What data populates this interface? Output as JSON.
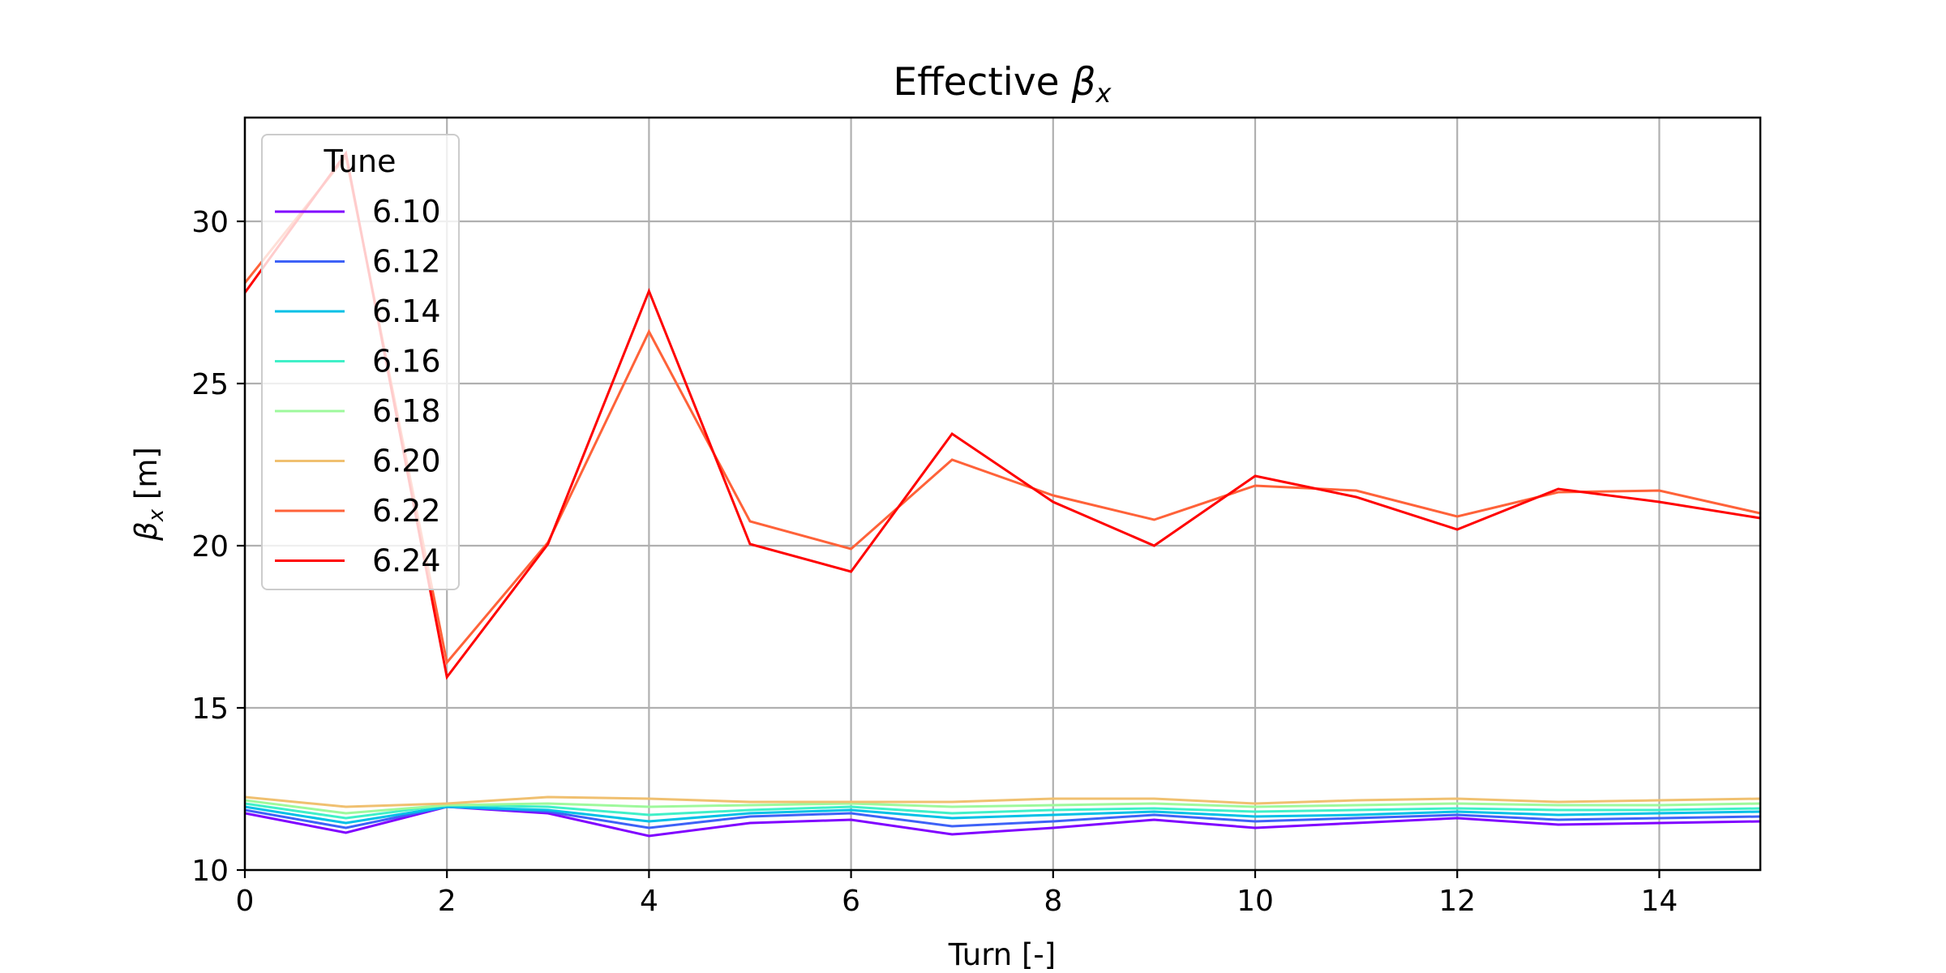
{
  "chart_data": {
    "type": "line",
    "title": "Effective",
    "title_symbol": "β",
    "title_subscript": "x",
    "xlabel": "Turn [-]",
    "ylabel_symbol": "β",
    "ylabel_subscript": "x",
    "ylabel_unit": "[m]",
    "xlim": [
      0,
      15
    ],
    "ylim": [
      10,
      33.2
    ],
    "xticks": [
      0,
      2,
      4,
      6,
      8,
      10,
      12,
      14
    ],
    "yticks": [
      10,
      15,
      20,
      25,
      30
    ],
    "grid": true,
    "legend": {
      "title": "Tune",
      "placement": "top-left"
    },
    "x": [
      0,
      1,
      2,
      3,
      4,
      5,
      6,
      7,
      8,
      9,
      10,
      11,
      12,
      13,
      14,
      15
    ],
    "series": [
      {
        "name": "6.10",
        "color": "#8000ff",
        "values": [
          11.75,
          11.15,
          11.95,
          11.75,
          11.05,
          11.45,
          11.55,
          11.1,
          11.3,
          11.55,
          11.3,
          11.45,
          11.6,
          11.4,
          11.45,
          11.5
        ]
      },
      {
        "name": "6.12",
        "color": "#3e62f7",
        "values": [
          11.85,
          11.3,
          11.95,
          11.8,
          11.3,
          11.65,
          11.75,
          11.35,
          11.5,
          11.7,
          11.5,
          11.6,
          11.7,
          11.55,
          11.6,
          11.65
        ]
      },
      {
        "name": "6.14",
        "color": "#00c0e6",
        "values": [
          11.95,
          11.45,
          11.95,
          11.85,
          11.5,
          11.75,
          11.85,
          11.6,
          11.7,
          11.8,
          11.65,
          11.7,
          11.8,
          11.7,
          11.75,
          11.8
        ]
      },
      {
        "name": "6.16",
        "color": "#40f0c8",
        "values": [
          12.05,
          11.6,
          12.0,
          11.95,
          11.7,
          11.85,
          11.95,
          11.75,
          11.85,
          11.9,
          11.8,
          11.85,
          11.9,
          11.85,
          11.85,
          11.9
        ]
      },
      {
        "name": "6.18",
        "color": "#9ef99c",
        "values": [
          12.15,
          11.75,
          12.0,
          12.05,
          11.95,
          12.0,
          12.05,
          11.95,
          12.0,
          12.05,
          11.95,
          12.0,
          12.05,
          12.0,
          12.0,
          12.05
        ]
      },
      {
        "name": "6.20",
        "color": "#f0c070",
        "values": [
          12.25,
          11.95,
          12.05,
          12.25,
          12.2,
          12.1,
          12.1,
          12.1,
          12.2,
          12.2,
          12.05,
          12.15,
          12.2,
          12.1,
          12.15,
          12.2
        ]
      },
      {
        "name": "6.22",
        "color": "#ff6239",
        "values": [
          28.1,
          32.0,
          16.4,
          20.1,
          26.6,
          20.75,
          19.9,
          22.65,
          21.55,
          20.8,
          21.85,
          21.7,
          20.9,
          21.65,
          21.7,
          21.0
        ]
      },
      {
        "name": "6.24",
        "color": "#ff0000",
        "values": [
          27.8,
          32.1,
          15.95,
          20.05,
          27.85,
          20.05,
          19.2,
          23.45,
          21.35,
          20.0,
          22.15,
          21.5,
          20.5,
          21.75,
          21.35,
          20.85
        ]
      }
    ]
  }
}
